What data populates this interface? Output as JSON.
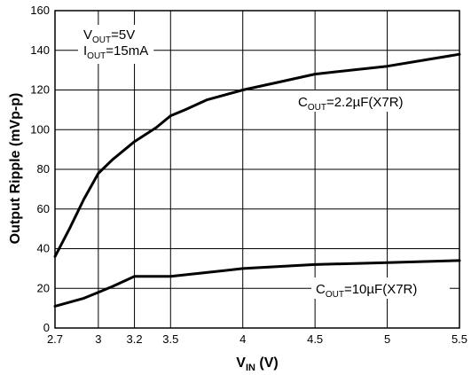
{
  "chart_data": {
    "type": "line",
    "xlabel": {
      "main": "V",
      "sub": "IN",
      "unit": " (V)"
    },
    "ylabel": "Output Ripple (mVp-p)",
    "xlim": [
      2.7,
      5.5
    ],
    "ylim": [
      0,
      160
    ],
    "xticks": [
      {
        "value": 2.7,
        "label": "2.7"
      },
      {
        "value": 3.0,
        "label": "3"
      },
      {
        "value": 3.25,
        "label": "3.2"
      },
      {
        "value": 3.5,
        "label": "3.5"
      },
      {
        "value": 4.0,
        "label": "4"
      },
      {
        "value": 4.5,
        "label": "4.5"
      },
      {
        "value": 5.0,
        "label": "5"
      },
      {
        "value": 5.5,
        "label": "5.5"
      }
    ],
    "yticks": [
      0,
      20,
      40,
      60,
      80,
      100,
      120,
      140,
      160
    ],
    "grid": true,
    "conditions": [
      {
        "main": "V",
        "sub": "OUT",
        "rest": "=5V"
      },
      {
        "main": "I",
        "sub": "OUT",
        "rest": "=15mA"
      }
    ],
    "series": [
      {
        "name": {
          "main": "C",
          "sub": "OUT",
          "rest": "=2.2µF(X7R)"
        },
        "x": [
          2.7,
          2.8,
          2.9,
          3.0,
          3.1,
          3.25,
          3.4,
          3.5,
          3.6,
          3.75,
          4.0,
          4.25,
          4.5,
          5.0,
          5.5
        ],
        "y": [
          36,
          50,
          65,
          78,
          85,
          94,
          101,
          107,
          110,
          115,
          120,
          124,
          128,
          132,
          138
        ]
      },
      {
        "name": {
          "main": "C",
          "sub": "OUT",
          "rest": "=10µF(X7R)"
        },
        "x": [
          2.7,
          2.8,
          2.9,
          3.0,
          3.1,
          3.25,
          3.5,
          3.75,
          4.0,
          4.5,
          5.0,
          5.5
        ],
        "y": [
          11,
          13,
          15,
          18,
          21,
          26,
          26,
          28,
          30,
          32,
          33,
          34
        ]
      }
    ]
  }
}
